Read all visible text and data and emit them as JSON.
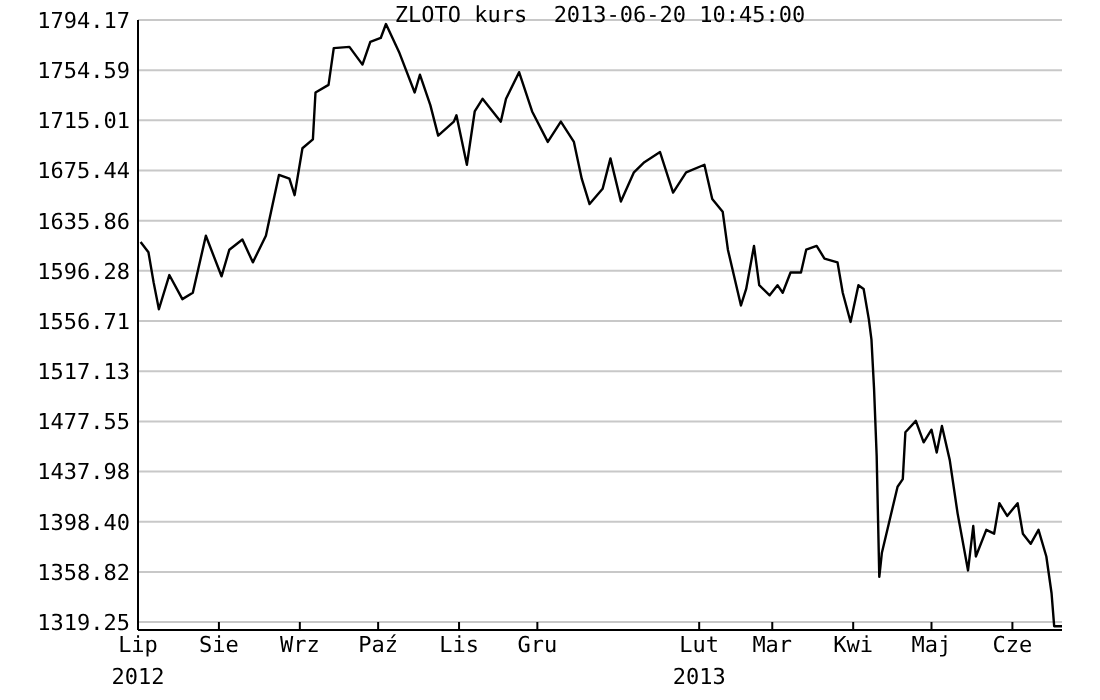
{
  "chart_data": {
    "type": "line",
    "title": "ZLOTO kurs  2013-06-20 10:45:00",
    "x": [
      "2012-07-02",
      "2012-07-05",
      "2012-07-07",
      "2012-07-09",
      "2012-07-13",
      "2012-07-18",
      "2012-07-22",
      "2012-07-27",
      "2012-08-02",
      "2012-08-05",
      "2012-08-10",
      "2012-08-14",
      "2012-08-19",
      "2012-08-24",
      "2012-08-28",
      "2012-08-30",
      "2012-09-02",
      "2012-09-06",
      "2012-09-07",
      "2012-09-12",
      "2012-09-14",
      "2012-09-20",
      "2012-09-25",
      "2012-09-28",
      "2012-10-02",
      "2012-10-04",
      "2012-10-09",
      "2012-10-15",
      "2012-10-17",
      "2012-10-21",
      "2012-10-24",
      "2012-10-30",
      "2012-10-31",
      "2012-11-04",
      "2012-11-07",
      "2012-11-10",
      "2012-11-17",
      "2012-11-19",
      "2012-11-24",
      "2012-11-29",
      "2012-12-05",
      "2012-12-10",
      "2012-12-15",
      "2012-12-18",
      "2012-12-21",
      "2012-12-26",
      "2012-12-29",
      "2013-01-02",
      "2013-01-07",
      "2013-01-11",
      "2013-01-17",
      "2013-01-22",
      "2013-01-27",
      "2013-02-03",
      "2013-02-06",
      "2013-02-10",
      "2013-02-12",
      "2013-02-17",
      "2013-02-19",
      "2013-02-22",
      "2013-02-24",
      "2013-02-28",
      "2013-03-03",
      "2013-03-05",
      "2013-03-08",
      "2013-03-12",
      "2013-03-14",
      "2013-03-18",
      "2013-03-21",
      "2013-03-26",
      "2013-03-28",
      "2013-03-31",
      "2013-04-03",
      "2013-04-05",
      "2013-04-07",
      "2013-04-08",
      "2013-04-09",
      "2013-04-10",
      "2013-04-11",
      "2013-04-12",
      "2013-04-15",
      "2013-04-18",
      "2013-04-20",
      "2013-04-21",
      "2013-04-25",
      "2013-04-28",
      "2013-05-01",
      "2013-05-03",
      "2013-05-05",
      "2013-05-08",
      "2013-05-11",
      "2013-05-15",
      "2013-05-17",
      "2013-05-18",
      "2013-05-22",
      "2013-05-25",
      "2013-05-27",
      "2013-05-30",
      "2013-06-03",
      "2013-06-05",
      "2013-06-08",
      "2013-06-11",
      "2013-06-14",
      "2013-06-16",
      "2013-06-17",
      "2013-06-20"
    ],
    "series": [
      {
        "color": "#000000",
        "values": [
          1619,
          1611,
          1587,
          1566,
          1593,
          1574,
          1579,
          1624,
          1592,
          1613,
          1621,
          1603,
          1624,
          1672,
          1669,
          1656,
          1693,
          1700,
          1737,
          1743,
          1772,
          1773,
          1759,
          1777,
          1780,
          1791,
          1769,
          1737,
          1751,
          1727,
          1703,
          1714,
          1719,
          1680,
          1722,
          1732,
          1714,
          1732,
          1753,
          1722,
          1698,
          1714,
          1698,
          1669,
          1649,
          1661,
          1685,
          1651,
          1674,
          1682,
          1690,
          1658,
          1674,
          1680,
          1653,
          1643,
          1613,
          1569,
          1582,
          1616,
          1585,
          1577,
          1585,
          1579,
          1595,
          1595,
          1613,
          1616,
          1606,
          1603,
          1579,
          1556,
          1585,
          1582,
          1558,
          1542,
          1503,
          1450,
          1355,
          1374,
          1400,
          1426,
          1432,
          1469,
          1478,
          1461,
          1471,
          1453,
          1474,
          1447,
          1405,
          1360,
          1395,
          1371,
          1392,
          1389,
          1413,
          1403,
          1413,
          1389,
          1381,
          1392,
          1371,
          1342,
          1316,
          1316
        ]
      }
    ],
    "xlim": [
      "2012-07-01",
      "2013-06-20"
    ],
    "xticks": [
      {
        "value": "2012-07-01",
        "label": "Lip\n2012"
      },
      {
        "value": "2012-08-01",
        "label": "Sie"
      },
      {
        "value": "2012-09-01",
        "label": "Wrz"
      },
      {
        "value": "2012-10-01",
        "label": "Paź"
      },
      {
        "value": "2012-11-01",
        "label": "Lis"
      },
      {
        "value": "2012-12-01",
        "label": "Gru"
      },
      {
        "value": "2013-02-01",
        "label": "Lut\n2013"
      },
      {
        "value": "2013-03-01",
        "label": "Mar"
      },
      {
        "value": "2013-04-01",
        "label": "Kwi"
      },
      {
        "value": "2013-05-01",
        "label": "Maj"
      },
      {
        "value": "2013-06-01",
        "label": "Cze"
      }
    ],
    "ylim": [
      1313,
      1794.17
    ],
    "yticks": [
      1319.25,
      1358.82,
      {
        "value": 1398.4,
        "label": "1398.40"
      },
      1437.98,
      1477.55,
      1517.13,
      1556.71,
      1596.28,
      1635.86,
      1675.44,
      1715.01,
      1754.59,
      1794.17
    ],
    "grid": "y",
    "legend": false,
    "marker": "none",
    "line_style": "solid"
  }
}
